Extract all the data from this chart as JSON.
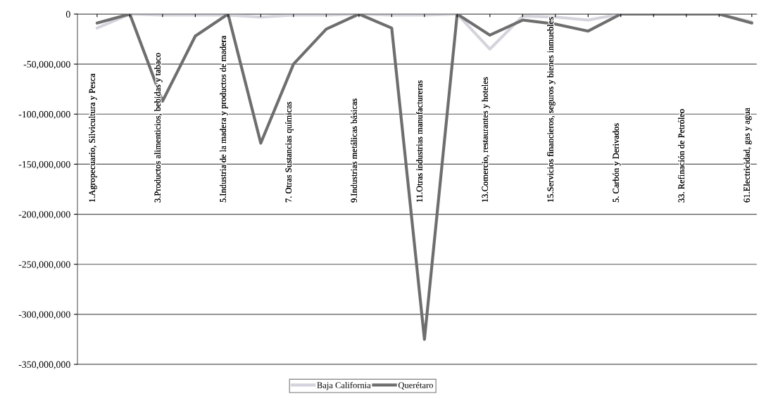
{
  "chart_data": {
    "type": "line",
    "categories": [
      "1.Agropecuario, Silvicultura y Pesca",
      null,
      "3.Productos alimenticios, bebidas y tabaco",
      null,
      "5.Industria de la madera y productos de madera",
      null,
      "7. Otras Sustancias químicas",
      null,
      "9.Industrias metálicas básicas",
      null,
      "11.Otras industrias manufactureras",
      null,
      "13.Comercio, restaurantes y hoteles",
      null,
      "15.Servicios financieros, seguros y bienes inmuebles",
      null,
      "5. Carbón y Derivados",
      null,
      "33. Refinación de Petróleo",
      null,
      "61.Electricidad, gas y agua"
    ],
    "series": [
      {
        "name": "Baja California",
        "color": "#d4d4dc",
        "values": [
          -14000000,
          0,
          -1000000,
          -1000000,
          -1000000,
          -3000000,
          -1000000,
          -1000000,
          0,
          -1000000,
          -1000000,
          0,
          -35000000,
          -2000000,
          -3000000,
          -6000000,
          0,
          0,
          0,
          0,
          -8000000
        ]
      },
      {
        "name": "Querétaro",
        "color": "#6e6e6e",
        "values": [
          -9000000,
          0,
          -87000000,
          -22000000,
          0,
          -129000000,
          -50000000,
          -15000000,
          0,
          -14000000,
          -325000000,
          0,
          -21000000,
          -6000000,
          -10000000,
          -17000000,
          0,
          0,
          0,
          0,
          -9000000
        ]
      }
    ],
    "ylim": [
      -350000000,
      0
    ],
    "yticks": [
      {
        "value": -350000000,
        "label": "-350,000,000"
      },
      {
        "value": -300000000,
        "label": "-300,000,000"
      },
      {
        "value": -250000000,
        "label": "-250,000,000"
      },
      {
        "value": -200000000,
        "label": "-200,000,000"
      },
      {
        "value": -150000000,
        "label": "-150,000,000"
      },
      {
        "value": -100000000,
        "label": "-100,000,000"
      },
      {
        "value": -50000000,
        "label": "-50,000,000"
      },
      {
        "value": 0,
        "label": "0"
      }
    ],
    "grid": "y",
    "legend": "bottom",
    "marker": "none",
    "line_style": "solid"
  }
}
